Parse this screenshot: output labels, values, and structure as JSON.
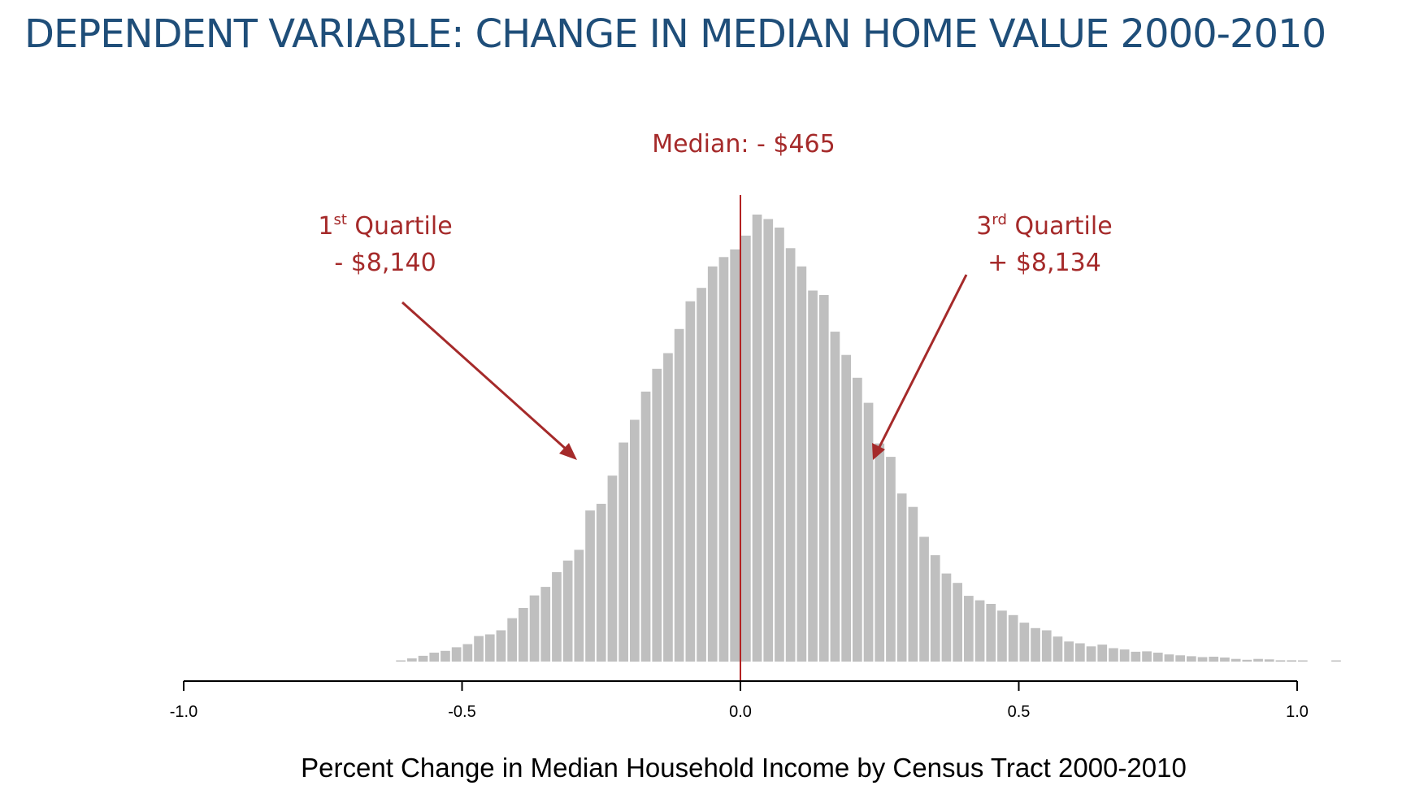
{
  "slide": {
    "title": "DEPENDENT VARIABLE: CHANGE IN MEDIAN HOME VALUE 2000-2010"
  },
  "annotations": {
    "median": "Median: - $465",
    "q1_number": "1",
    "q1_sup": "st",
    "q1_word": " Quartile",
    "q1_value": "- $8,140",
    "q3_number": "3",
    "q3_sup": "rd",
    "q3_word": " Quartile",
    "q3_value": "+ $8,134"
  },
  "colors": {
    "title": "#1f4e79",
    "annotation": "#a52a2a",
    "bars": "#bfbfbf"
  },
  "chart_data": {
    "type": "bar",
    "subtype": "histogram",
    "xlabel": "Percent Change in Median Household Income by Census Tract 2000-2010",
    "ylabel": "",
    "xlim": [
      -1.0,
      1.0
    ],
    "x_ticks": [
      -1.0,
      -0.5,
      0.0,
      0.5,
      1.0
    ],
    "x_tick_labels": [
      "-1.0",
      "-0.5",
      "0.0",
      "0.5",
      "1.0"
    ],
    "y_axis_shown": false,
    "grid": false,
    "bin_width": 0.02,
    "bin_start": -0.62,
    "bin_end": 1.08,
    "values": [
      0.2,
      0.7,
      1.3,
      2.0,
      2.4,
      3.2,
      3.9,
      5.7,
      6.1,
      7.0,
      9.7,
      12.0,
      14.8,
      16.7,
      20.0,
      22.6,
      25.0,
      33.8,
      35.3,
      41.6,
      49.0,
      54.1,
      60.4,
      65.5,
      69.0,
      74.4,
      80.6,
      83.6,
      88.4,
      90.5,
      92.2,
      95.3,
      100.0,
      99.0,
      97.1,
      92.5,
      88.4,
      83.0,
      82.0,
      73.8,
      68.6,
      63.5,
      57.9,
      48.8,
      45.8,
      37.6,
      34.6,
      27.9,
      23.8,
      19.7,
      17.6,
      14.7,
      13.7,
      12.9,
      11.4,
      10.4,
      8.7,
      7.5,
      7.0,
      5.6,
      4.5,
      4.1,
      3.4,
      3.8,
      3.0,
      2.7,
      2.2,
      2.3,
      2.0,
      1.6,
      1.4,
      1.2,
      1.0,
      1.1,
      0.9,
      0.6,
      0.4,
      0.6,
      0.5,
      0.3,
      0.3,
      0.2,
      0.0,
      0.0,
      0.2
    ],
    "median_line_x": 0.0,
    "value_unit": "relative frequency (tallest bin = 100)"
  }
}
